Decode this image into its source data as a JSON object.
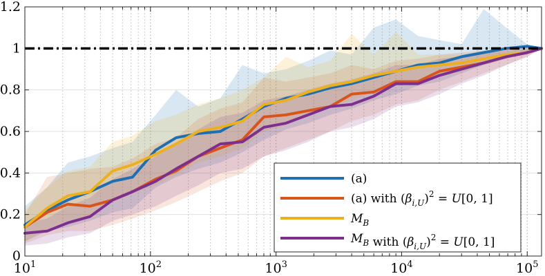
{
  "chart_data": {
    "type": "line",
    "title": "",
    "xlabel": "",
    "ylabel": "",
    "xscale": "log",
    "xlim": [
      10,
      130000
    ],
    "ylim": [
      0,
      1.2
    ],
    "grid": "x-major-and-minor-dotted",
    "legend_position": "bottom-right",
    "x_ticks": [
      {
        "value": 10,
        "base": "10",
        "exp": "1"
      },
      {
        "value": 100,
        "base": "10",
        "exp": "2"
      },
      {
        "value": 1000,
        "base": "10",
        "exp": "3"
      },
      {
        "value": 10000,
        "base": "10",
        "exp": "4"
      },
      {
        "value": 100000,
        "base": "10",
        "exp": "5"
      }
    ],
    "y_ticks": [
      {
        "value": 0,
        "label": "0"
      },
      {
        "value": 0.2,
        "label": "0.2"
      },
      {
        "value": 0.4,
        "label": "0.4"
      },
      {
        "value": 0.6,
        "label": "0.6"
      },
      {
        "value": 0.8,
        "label": "0.8"
      },
      {
        "value": 1.0,
        "label": "1"
      },
      {
        "value": 1.2,
        "label": "1.2"
      }
    ],
    "reference_line": {
      "y": 1.0,
      "style": "dash-dot",
      "color": "#000000"
    },
    "x": [
      10,
      15,
      22,
      33,
      50,
      72,
      110,
      160,
      240,
      360,
      540,
      800,
      1200,
      1800,
      2700,
      4000,
      6000,
      9000,
      13500,
      20000,
      30000,
      45000,
      68000,
      100000,
      130000
    ],
    "series": [
      {
        "name": "blue",
        "color": "#1f6fb0",
        "band_opacity": 0.17,
        "values": [
          0.15,
          0.22,
          0.27,
          0.31,
          0.36,
          0.38,
          0.51,
          0.57,
          0.59,
          0.6,
          0.66,
          0.72,
          0.76,
          0.78,
          0.81,
          0.83,
          0.86,
          0.89,
          0.92,
          0.93,
          0.96,
          0.98,
          1.0,
          1.01,
          1.0
        ],
        "upper": [
          0.24,
          0.33,
          0.45,
          0.48,
          0.52,
          0.55,
          0.68,
          0.8,
          0.72,
          0.76,
          0.92,
          0.88,
          0.9,
          0.94,
          0.99,
          0.97,
          1.1,
          1.14,
          1.06,
          1.04,
          1.02,
          1.19,
          1.1,
          1.02,
          1.0
        ],
        "lower": [
          0.07,
          0.12,
          0.14,
          0.17,
          0.21,
          0.23,
          0.33,
          0.38,
          0.42,
          0.45,
          0.5,
          0.56,
          0.61,
          0.64,
          0.68,
          0.71,
          0.75,
          0.78,
          0.82,
          0.84,
          0.88,
          0.92,
          0.95,
          0.98,
          1.0
        ]
      },
      {
        "name": "orange",
        "color": "#d9541a",
        "band_opacity": 0.15,
        "values": [
          0.14,
          0.21,
          0.25,
          0.24,
          0.27,
          0.31,
          0.37,
          0.41,
          0.48,
          0.52,
          0.56,
          0.67,
          0.68,
          0.7,
          0.72,
          0.78,
          0.79,
          0.84,
          0.84,
          0.89,
          0.91,
          0.93,
          0.96,
          0.98,
          1.0
        ],
        "upper": [
          0.2,
          0.38,
          0.4,
          0.42,
          0.43,
          0.47,
          0.54,
          0.57,
          0.66,
          0.71,
          0.74,
          0.86,
          0.84,
          0.86,
          0.88,
          0.92,
          0.9,
          0.94,
          0.95,
          0.97,
          0.98,
          0.99,
          1.0,
          1.0,
          1.0
        ],
        "lower": [
          0.06,
          0.1,
          0.12,
          0.12,
          0.15,
          0.18,
          0.22,
          0.26,
          0.31,
          0.36,
          0.4,
          0.48,
          0.52,
          0.56,
          0.6,
          0.65,
          0.68,
          0.73,
          0.75,
          0.8,
          0.84,
          0.88,
          0.92,
          0.96,
          1.0
        ]
      },
      {
        "name": "yellow",
        "color": "#ecb01f",
        "band_opacity": 0.17,
        "values": [
          0.14,
          0.23,
          0.29,
          0.31,
          0.41,
          0.44,
          0.49,
          0.54,
          0.6,
          0.62,
          0.65,
          0.73,
          0.75,
          0.79,
          0.82,
          0.84,
          0.87,
          0.89,
          0.91,
          0.92,
          0.93,
          0.95,
          0.97,
          0.98,
          1.0
        ],
        "upper": [
          0.22,
          0.33,
          0.41,
          0.43,
          0.55,
          0.58,
          0.65,
          0.68,
          0.73,
          0.76,
          0.8,
          0.86,
          0.96,
          0.91,
          0.94,
          1.07,
          0.97,
          1.08,
          0.97,
          0.97,
          0.97,
          0.98,
          0.99,
          1.0,
          1.0
        ],
        "lower": [
          0.07,
          0.13,
          0.17,
          0.19,
          0.26,
          0.3,
          0.34,
          0.39,
          0.45,
          0.48,
          0.52,
          0.6,
          0.63,
          0.68,
          0.72,
          0.75,
          0.79,
          0.82,
          0.85,
          0.87,
          0.89,
          0.92,
          0.95,
          0.97,
          1.0
        ]
      },
      {
        "name": "purple",
        "color": "#7e2f8e",
        "band_opacity": 0.16,
        "values": [
          0.11,
          0.12,
          0.16,
          0.19,
          0.27,
          0.31,
          0.36,
          0.42,
          0.48,
          0.54,
          0.55,
          0.62,
          0.64,
          0.68,
          0.72,
          0.73,
          0.77,
          0.83,
          0.83,
          0.87,
          0.9,
          0.93,
          0.96,
          0.98,
          1.0
        ],
        "upper": [
          0.16,
          0.18,
          0.24,
          0.28,
          0.37,
          0.42,
          0.48,
          0.54,
          0.61,
          0.67,
          0.69,
          0.75,
          0.77,
          0.8,
          0.83,
          0.85,
          0.88,
          0.92,
          0.92,
          0.95,
          0.96,
          0.98,
          0.99,
          1.0,
          1.0
        ],
        "lower": [
          0.05,
          0.06,
          0.09,
          0.11,
          0.17,
          0.2,
          0.24,
          0.29,
          0.34,
          0.4,
          0.42,
          0.48,
          0.51,
          0.55,
          0.6,
          0.62,
          0.66,
          0.72,
          0.74,
          0.78,
          0.83,
          0.87,
          0.92,
          0.96,
          1.0
        ]
      }
    ],
    "legend": [
      {
        "series": "blue",
        "label_main": "(a)",
        "label_suffix": ""
      },
      {
        "series": "orange",
        "label_main": "(a) with ",
        "label_suffix": "(β_{i,U})^2 = U[0,1]"
      },
      {
        "series": "yellow",
        "label_main": "M_B",
        "label_suffix": ""
      },
      {
        "series": "purple",
        "label_main": "M_B with ",
        "label_suffix": "(β_{i,U})^2 = U[0,1]"
      }
    ]
  }
}
